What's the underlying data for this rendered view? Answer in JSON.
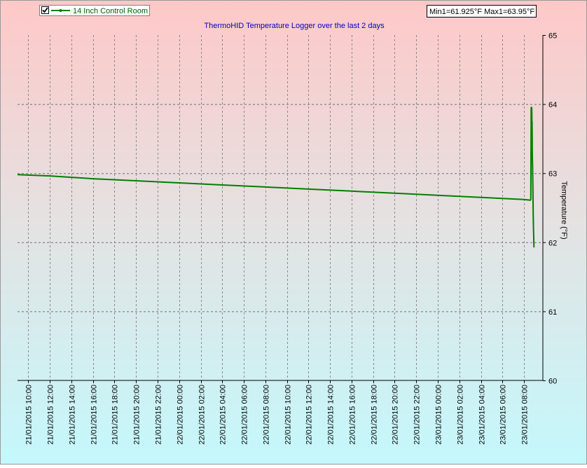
{
  "legend": {
    "checked": true,
    "label": "14 Inch Control Room"
  },
  "stats_box": "Min1=61.925°F Max1=63.95°F",
  "chart_data": {
    "type": "line",
    "title": "ThermoHID Temperature Logger over the last 2 days",
    "xlabel": "",
    "ylabel": "Temperature (°F)",
    "ylim": [
      60,
      65
    ],
    "y_ticks": [
      "60",
      "61",
      "62",
      "63",
      "64",
      "65"
    ],
    "y_axis_position": "right",
    "grid": true,
    "legend_position": "top-left",
    "x_range": [
      "21/01/2015 09:00",
      "23/01/2015 09:45"
    ],
    "x_ticks": [
      "21/01/2015 10:00",
      "21/01/2015 12:00",
      "21/01/2015 14:00",
      "21/01/2015 16:00",
      "21/01/2015 18:00",
      "21/01/2015 20:00",
      "21/01/2015 22:00",
      "22/01/2015 00:00",
      "22/01/2015 02:00",
      "22/01/2015 04:00",
      "22/01/2015 06:00",
      "22/01/2015 08:00",
      "22/01/2015 10:00",
      "22/01/2015 12:00",
      "22/01/2015 14:00",
      "22/01/2015 16:00",
      "22/01/2015 18:00",
      "22/01/2015 20:00",
      "22/01/2015 22:00",
      "23/01/2015 00:00",
      "23/01/2015 02:00",
      "23/01/2015 04:00",
      "23/01/2015 06:00",
      "23/01/2015 08:00"
    ],
    "series": [
      {
        "name": "14 Inch Control Room",
        "color": "#008000",
        "points": [
          {
            "x": "21/01/2015 09:00",
            "y": 62.98
          },
          {
            "x": "21/01/2015 12:00",
            "y": 62.96
          },
          {
            "x": "21/01/2015 16:00",
            "y": 62.92
          },
          {
            "x": "21/01/2015 20:00",
            "y": 62.89
          },
          {
            "x": "22/01/2015 00:00",
            "y": 62.86
          },
          {
            "x": "22/01/2015 04:00",
            "y": 62.83
          },
          {
            "x": "22/01/2015 08:00",
            "y": 62.8
          },
          {
            "x": "22/01/2015 12:00",
            "y": 62.77
          },
          {
            "x": "22/01/2015 16:00",
            "y": 62.74
          },
          {
            "x": "22/01/2015 20:00",
            "y": 62.71
          },
          {
            "x": "23/01/2015 00:00",
            "y": 62.68
          },
          {
            "x": "23/01/2015 04:00",
            "y": 62.65
          },
          {
            "x": "23/01/2015 08:00",
            "y": 62.62
          },
          {
            "x": "23/01/2015 08:35",
            "y": 62.61
          },
          {
            "x": "23/01/2015 08:38",
            "y": 62.62
          },
          {
            "x": "23/01/2015 08:40",
            "y": 63.95
          },
          {
            "x": "23/01/2015 08:43",
            "y": 63.95
          },
          {
            "x": "23/01/2015 08:44",
            "y": 63.7
          },
          {
            "x": "23/01/2015 08:45",
            "y": 63.75
          },
          {
            "x": "23/01/2015 08:46",
            "y": 63.3
          },
          {
            "x": "23/01/2015 08:47",
            "y": 63.2
          },
          {
            "x": "23/01/2015 08:48",
            "y": 63.05
          },
          {
            "x": "23/01/2015 08:49",
            "y": 62.9
          },
          {
            "x": "23/01/2015 08:50",
            "y": 62.7
          },
          {
            "x": "23/01/2015 08:51",
            "y": 62.4
          },
          {
            "x": "23/01/2015 08:52",
            "y": 62.3
          },
          {
            "x": "23/01/2015 08:53",
            "y": 62.15
          },
          {
            "x": "23/01/2015 08:54",
            "y": 62.1
          },
          {
            "x": "23/01/2015 08:55",
            "y": 61.95
          },
          {
            "x": "23/01/2015 08:56",
            "y": 61.925
          }
        ]
      }
    ]
  }
}
